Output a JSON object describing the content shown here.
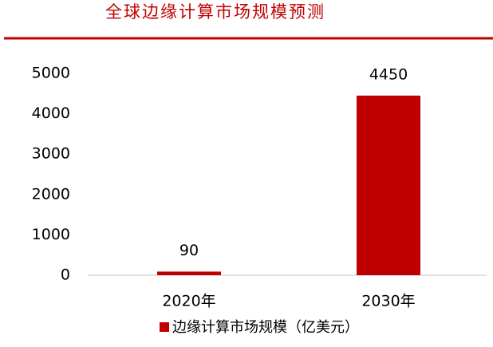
{
  "chart_data": {
    "type": "bar",
    "title": "全球边缘计算市场规模预测",
    "categories": [
      "2020年",
      "2030年"
    ],
    "series": [
      {
        "name": "边缘计算市场规模（亿美元）",
        "color": "#c00000",
        "values": [
          90,
          4450
        ]
      }
    ],
    "ylim": [
      0,
      5000
    ],
    "yticks": [
      0,
      1000,
      2000,
      3000,
      4000,
      5000
    ],
    "grid": false,
    "legend": "bottom"
  }
}
